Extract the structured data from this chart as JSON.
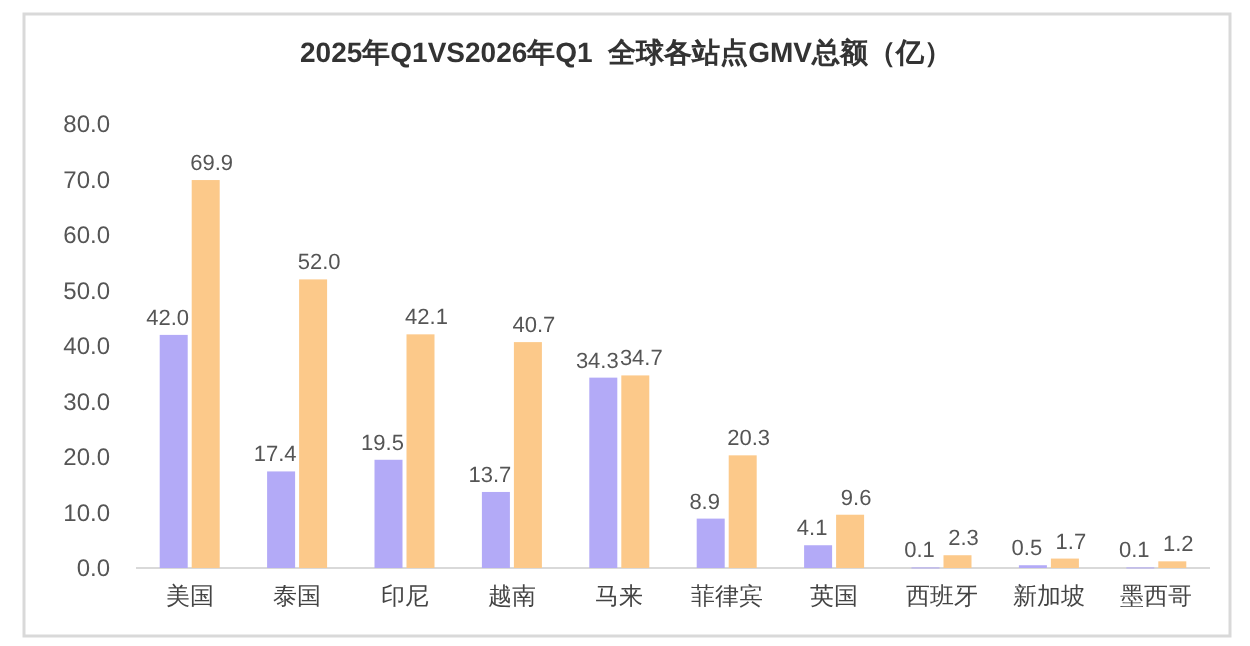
{
  "chart_data": {
    "type": "bar",
    "title": "2025年Q1VS2026年Q1  全球各站点GMV总额（亿）",
    "categories": [
      "美国",
      "泰国",
      "印尼",
      "越南",
      "马来",
      "菲律宾",
      "英国",
      "西班牙",
      "新加坡",
      "墨西哥"
    ],
    "series": [
      {
        "color": "#b3aaf7",
        "values": [
          42.0,
          17.4,
          19.5,
          13.7,
          34.3,
          8.9,
          4.1,
          0.1,
          0.5,
          0.1
        ],
        "value_labels": [
          "42.0",
          "17.4",
          "19.5",
          "13.7",
          "34.3",
          "8.9",
          "4.1",
          "0.1",
          "0.5",
          "0.1"
        ]
      },
      {
        "color": "#fcc98a",
        "values": [
          69.9,
          52.0,
          42.1,
          40.7,
          34.7,
          20.3,
          9.6,
          2.3,
          1.7,
          1.2
        ],
        "value_labels": [
          "69.9",
          "52.0",
          "42.1",
          "40.7",
          "34.7",
          "20.3",
          "9.6",
          "2.3",
          "1.7",
          "1.2"
        ]
      }
    ],
    "ylim": [
      0,
      80
    ],
    "yticks": [
      {
        "value": 0,
        "label": "0.0"
      },
      {
        "value": 10,
        "label": "10.0"
      },
      {
        "value": 20,
        "label": "20.0"
      },
      {
        "value": 30,
        "label": "30.0"
      },
      {
        "value": 40,
        "label": "40.0"
      },
      {
        "value": 50,
        "label": "50.0"
      },
      {
        "value": 60,
        "label": "60.0"
      },
      {
        "value": 70,
        "label": "70.0"
      },
      {
        "value": 80,
        "label": "80.0"
      }
    ],
    "grid": false
  }
}
